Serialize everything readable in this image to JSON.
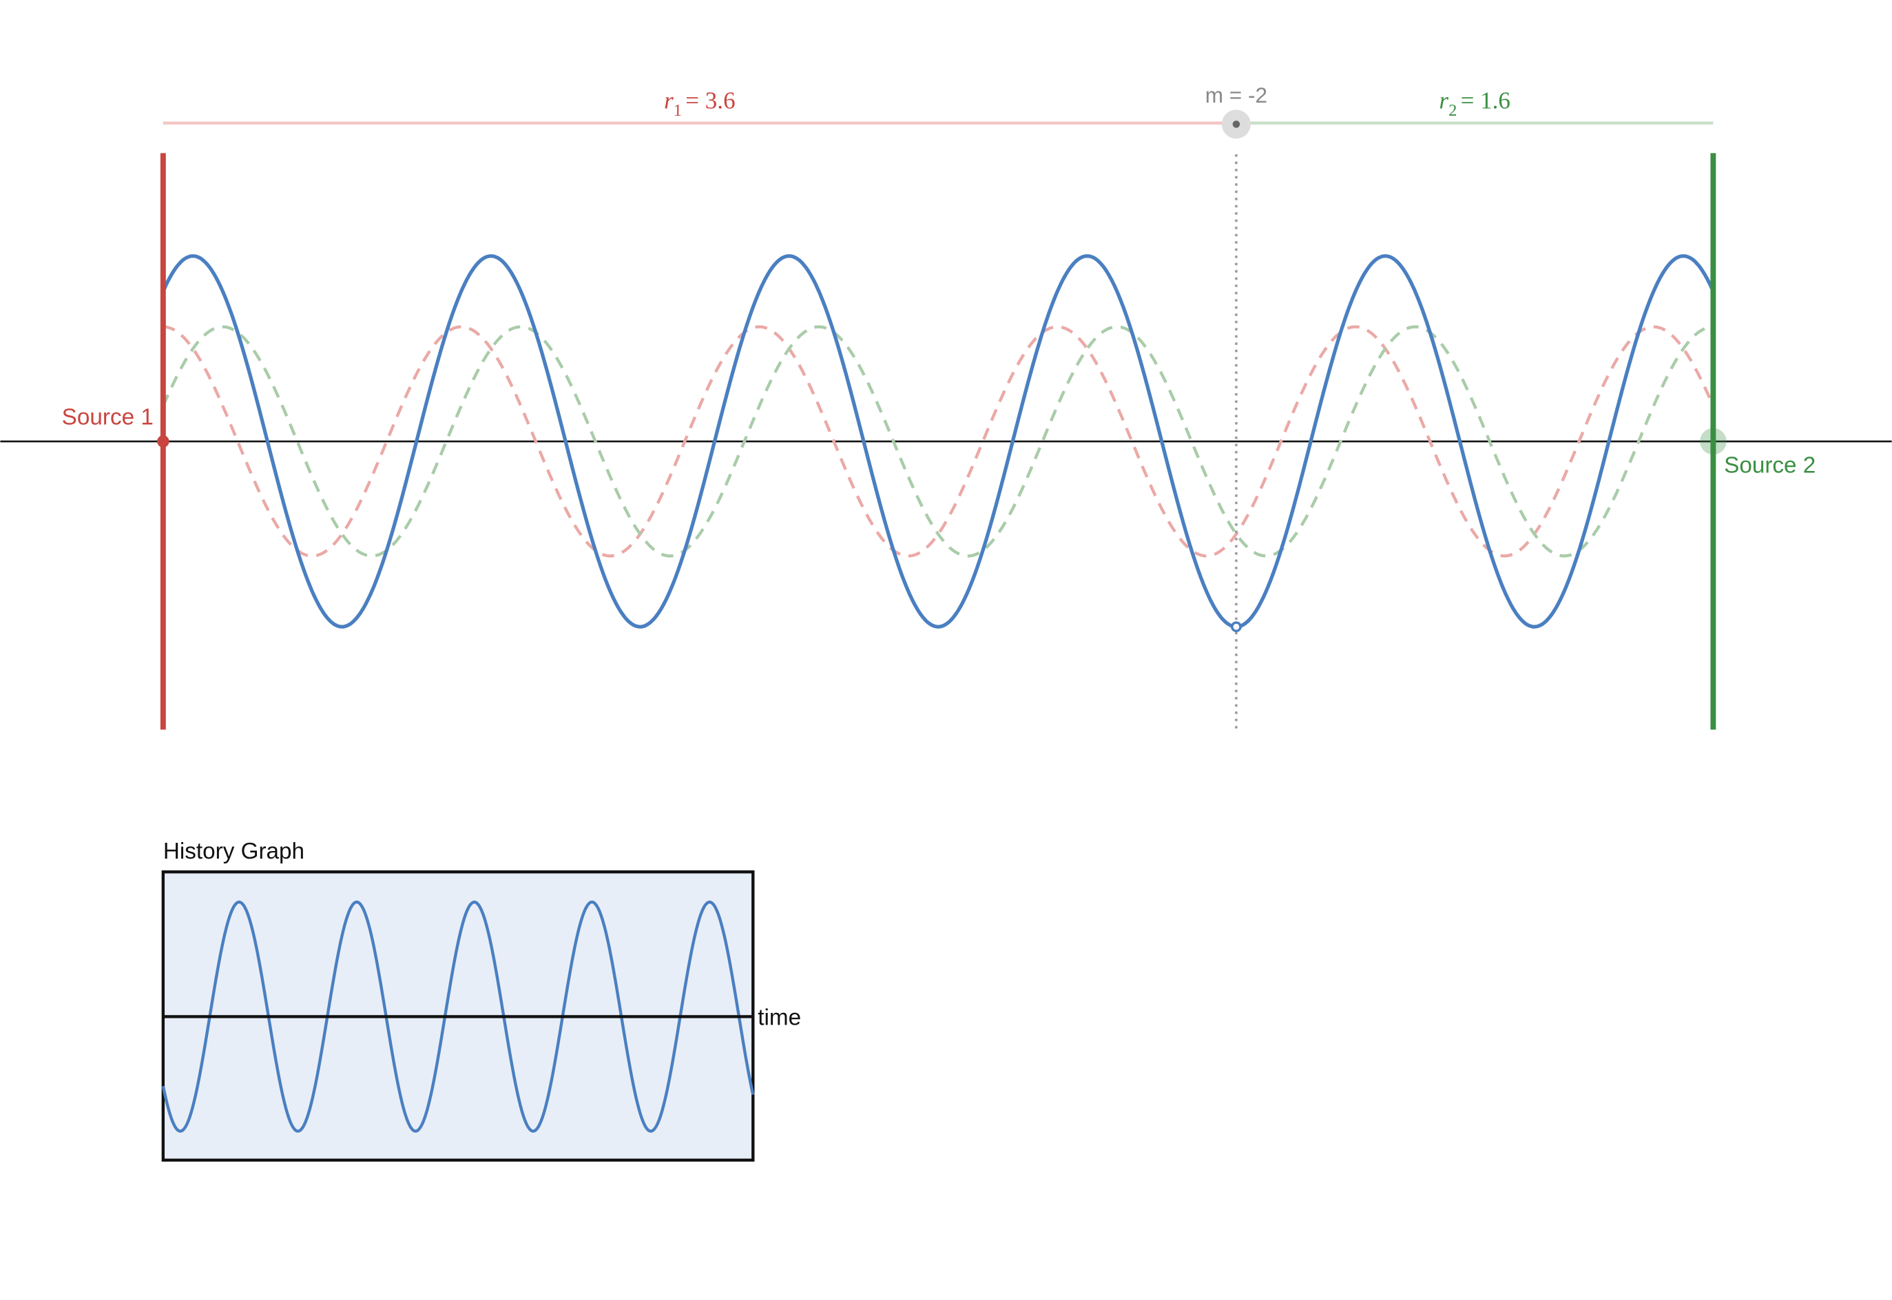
{
  "labels": {
    "source1": "Source 1",
    "source2": "Source 2",
    "r1_var": "r",
    "r1_sub": "1",
    "r1_value": "= 3.6",
    "r2_var": "r",
    "r2_sub": "2",
    "r2_value": "= 1.6",
    "m_label": "m = -2",
    "history_title": "History Graph",
    "time_axis": "time"
  },
  "simulation": {
    "r1": 3.6,
    "r2": 1.6,
    "m": -2
  },
  "colors": {
    "source1": "#c9453f",
    "source2": "#3a8f42",
    "superposition": "#4a7fc1",
    "wave1_dashed": "#eaa9a6",
    "wave2_dashed": "#a9cca9",
    "r1_line": "#f3c6c6",
    "r2_line": "#c9dfc9",
    "marker": "#888888",
    "history_fill": "#e8eef7"
  }
}
